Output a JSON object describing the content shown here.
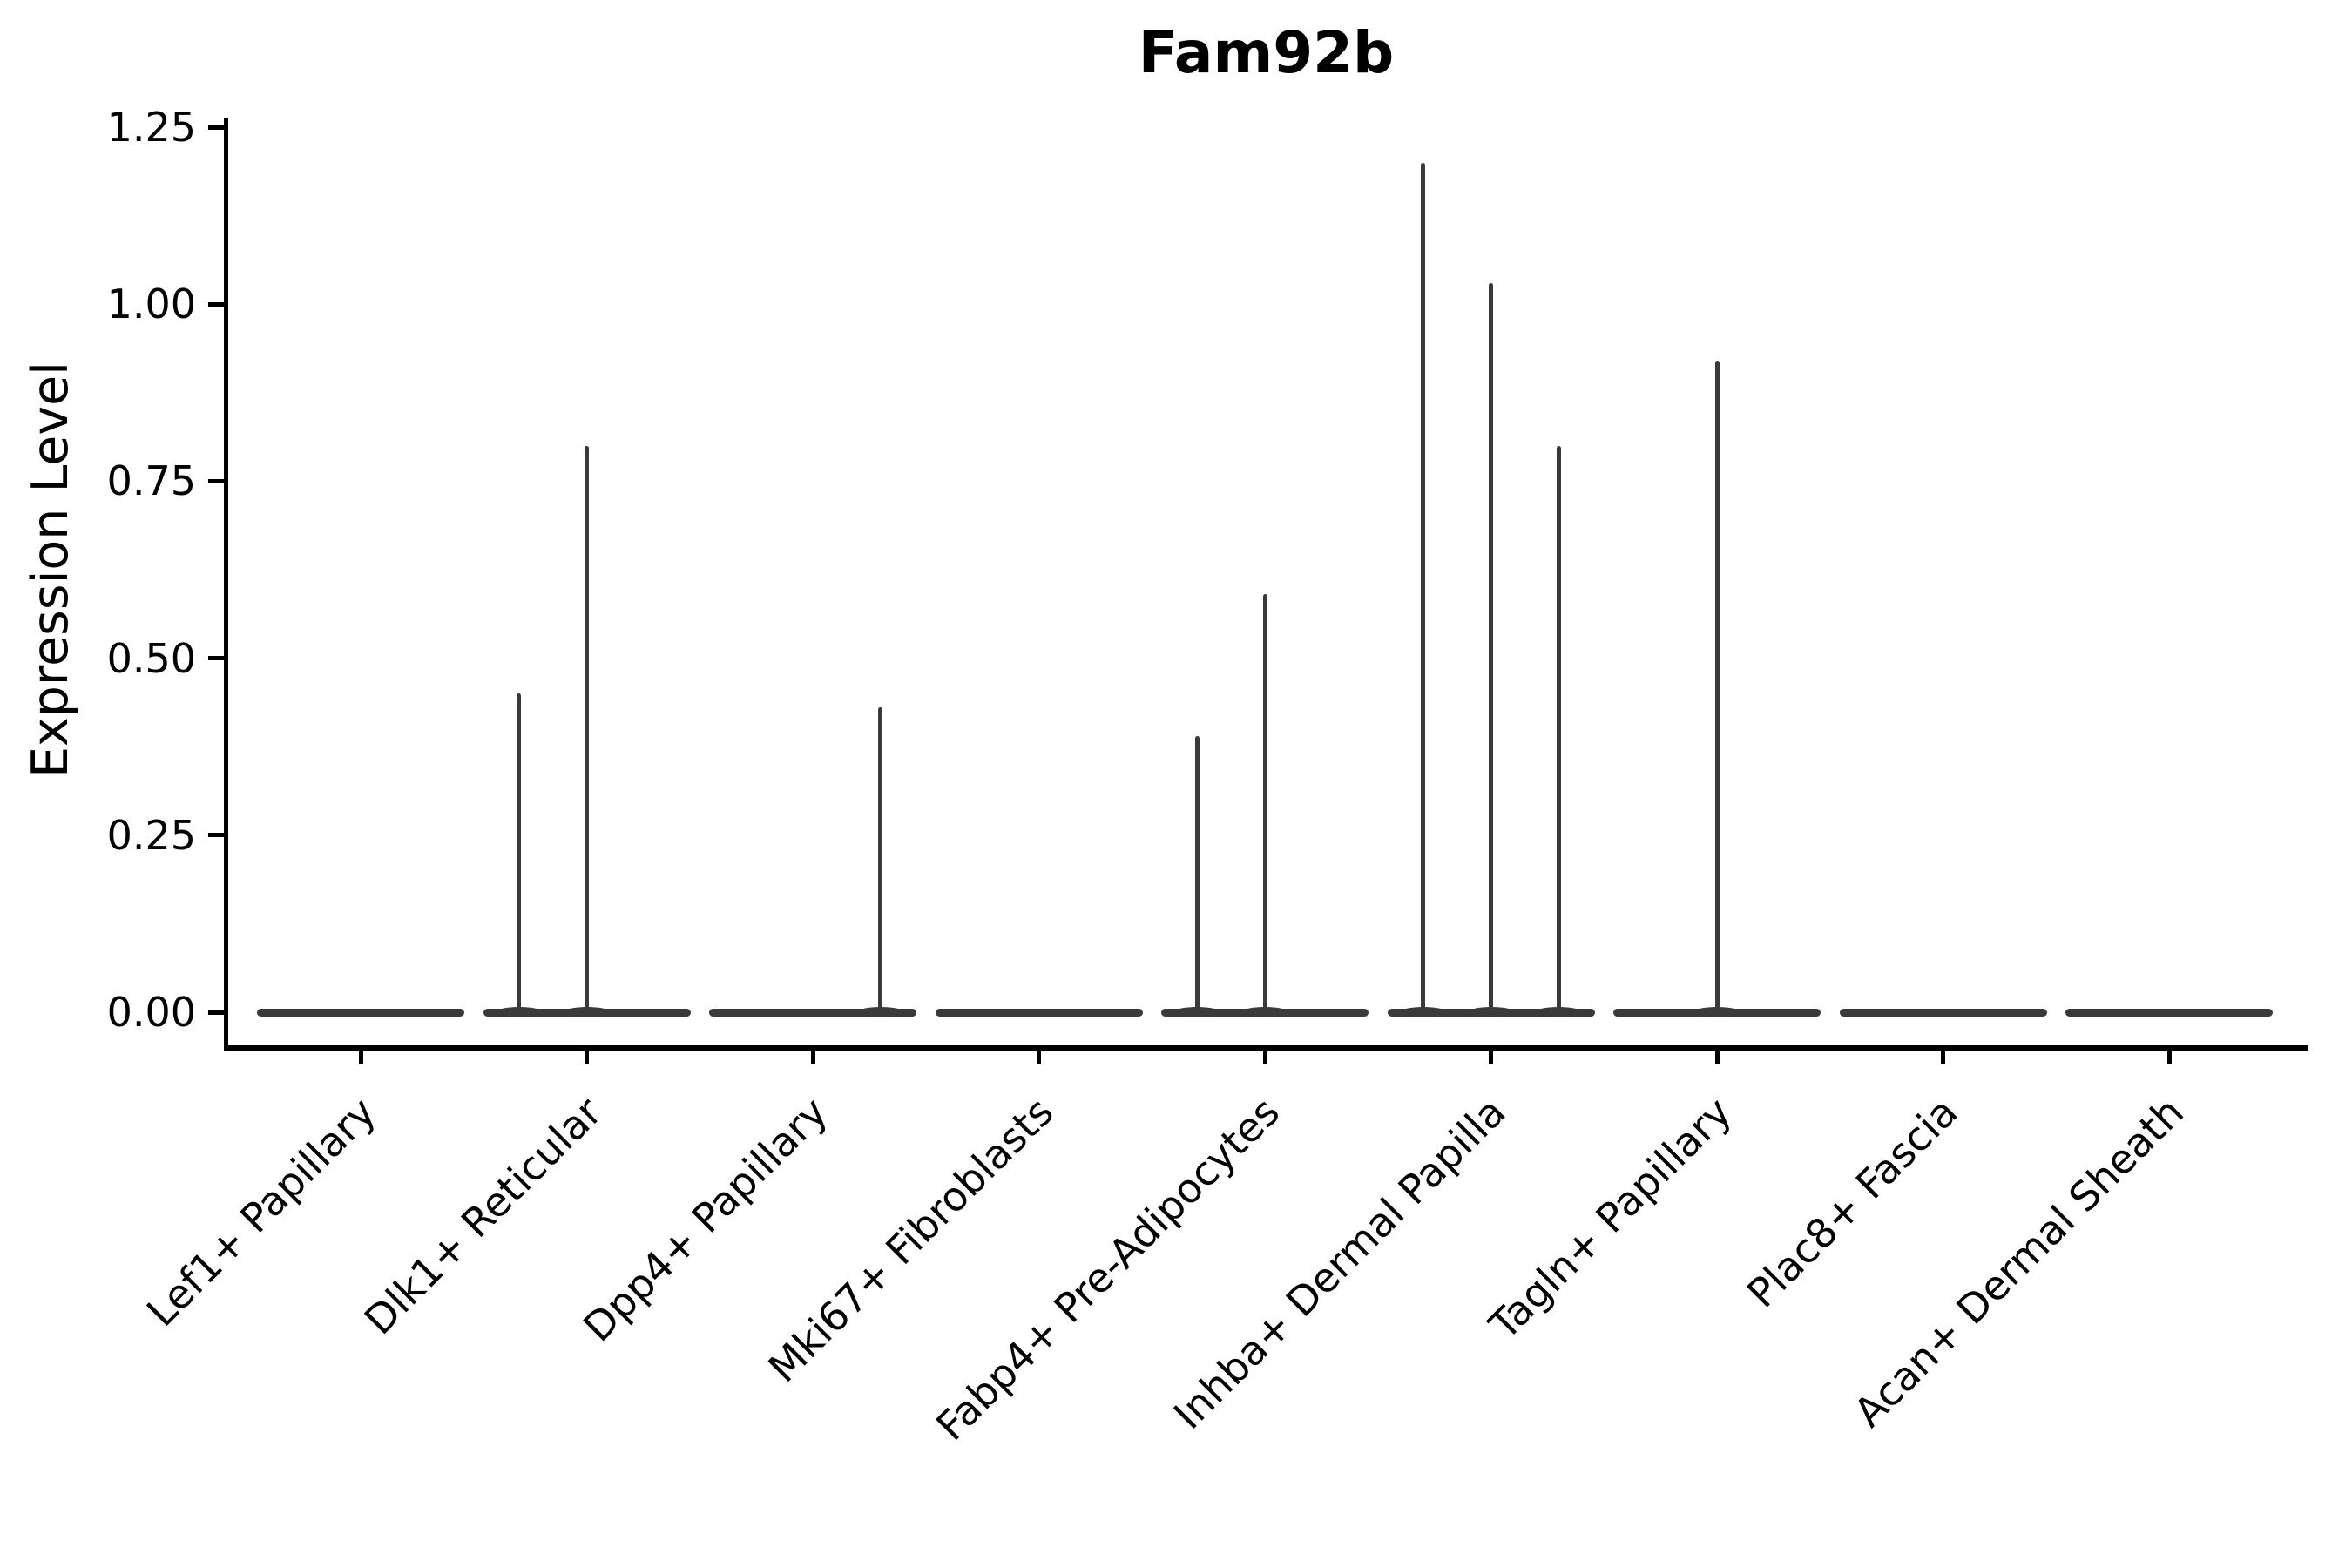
{
  "figure": {
    "background": "#ffffff"
  },
  "chart_data": {
    "type": "violin",
    "title": "Fam92b",
    "xlabel": "",
    "ylabel": "Expression Level",
    "ylim": [
      -0.054,
      1.264
    ],
    "grid": false,
    "legend": "none",
    "yticks": [
      "0.00",
      "0.25",
      "0.50",
      "0.75",
      "1.00",
      "1.25"
    ],
    "categories": [
      "Lef1+ Papillary",
      "Dlk1+ Reticular",
      "Dpp4+ Papillary",
      "Mki67+ Fibroblasts",
      "Fabp4+ Pre-Adipocytes",
      "Inhba+ Dermal Papilla",
      "Tagln+ Papillary",
      "Plac8+ Fascia",
      "Acan+ Dermal Sheath"
    ],
    "series": [
      {
        "name": "Lef1+ Papillary",
        "baseline": 0.0,
        "spikes": []
      },
      {
        "name": "Dlk1+ Reticular",
        "baseline": 0.0,
        "spikes": [
          {
            "value": 0.45,
            "offset": -0.3
          },
          {
            "value": 0.8,
            "offset": 0.0
          }
        ]
      },
      {
        "name": "Dpp4+ Papillary",
        "baseline": 0.0,
        "spikes": [
          {
            "value": 0.43,
            "offset": 0.3
          }
        ]
      },
      {
        "name": "Mki67+ Fibroblasts",
        "baseline": 0.0,
        "spikes": []
      },
      {
        "name": "Fabp4+ Pre-Adipocytes",
        "baseline": 0.0,
        "spikes": [
          {
            "value": 0.39,
            "offset": -0.3
          },
          {
            "value": 0.59,
            "offset": 0.0
          }
        ]
      },
      {
        "name": "Inhba+ Dermal Papilla",
        "baseline": 0.0,
        "spikes": [
          {
            "value": 1.2,
            "offset": -0.3
          },
          {
            "value": 1.03,
            "offset": 0.0
          },
          {
            "value": 0.8,
            "offset": 0.3
          }
        ]
      },
      {
        "name": "Tagln+ Papillary",
        "baseline": 0.0,
        "spikes": [
          {
            "value": 0.92,
            "offset": 0.0
          }
        ]
      },
      {
        "name": "Plac8+ Fascia",
        "baseline": 0.0,
        "spikes": []
      },
      {
        "name": "Acan+ Dermal Sheath",
        "baseline": 0.0,
        "spikes": []
      }
    ],
    "colors": {
      "violin": "#3a3a3a",
      "axis": "#000000",
      "text": "#000000"
    }
  }
}
